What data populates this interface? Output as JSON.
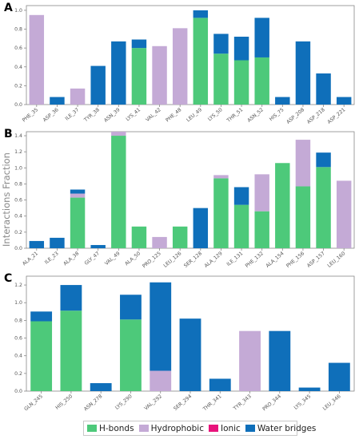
{
  "ylabel": "Interactions Fraction",
  "legend": {
    "hbonds": "H-bonds",
    "hydrophobic": "Hydrophobic",
    "ionic": "Ionic",
    "water": "Water bridges"
  },
  "colors": {
    "hbonds": "#4dc97a",
    "hydrophobic": "#c4aad6",
    "ionic": "#e8137b",
    "water": "#0f6fba"
  },
  "chart_data": [
    {
      "panel": "A",
      "type": "bar",
      "stacked": true,
      "ylim": [
        0,
        1.05
      ],
      "yticks": [
        0.0,
        0.2,
        0.4,
        0.6,
        0.8,
        1.0
      ],
      "categories": [
        "PHE_35",
        "ASP_36",
        "ILE_37",
        "TYR_38",
        "ASN_39",
        "LYS_41",
        "VAL_42",
        "PHE_48",
        "LEU_49",
        "LYS_50",
        "THR_51",
        "ASN_52",
        "HIS_75",
        "ASP_208",
        "ASP_218",
        "ASP_221"
      ],
      "series": [
        {
          "name": "H-bonds",
          "values": [
            0,
            0,
            0,
            0,
            0,
            0.6,
            0,
            0,
            0.92,
            0.54,
            0.47,
            0.5,
            0,
            0,
            0,
            0
          ]
        },
        {
          "name": "Hydrophobic",
          "values": [
            0.95,
            0,
            0.17,
            0,
            0,
            0,
            0.62,
            0.81,
            0,
            0,
            0,
            0,
            0,
            0,
            0,
            0
          ]
        },
        {
          "name": "Ionic",
          "values": [
            0,
            0,
            0,
            0,
            0,
            0,
            0,
            0,
            0,
            0,
            0,
            0,
            0,
            0,
            0,
            0
          ]
        },
        {
          "name": "Water bridges",
          "values": [
            0,
            0.08,
            0,
            0.41,
            0.67,
            0.09,
            0,
            0,
            0.08,
            0.21,
            0.25,
            0.42,
            0.08,
            0.67,
            0.33,
            0.08
          ]
        }
      ]
    },
    {
      "panel": "B",
      "type": "bar",
      "stacked": true,
      "ylim": [
        0,
        1.45
      ],
      "yticks": [
        0.0,
        0.2,
        0.4,
        0.6,
        0.8,
        1.0,
        1.2,
        1.4
      ],
      "categories": [
        "ALA_21",
        "ILE_23",
        "ALA_38",
        "GLY_47",
        "VAL_49",
        "ALA_50",
        "PRO_125",
        "LEU_126",
        "SER_128",
        "ALA_129",
        "ILE_131",
        "PHE_132",
        "ALA_154",
        "PHE_156",
        "ASP_157",
        "LEU_160"
      ],
      "series": [
        {
          "name": "H-bonds",
          "values": [
            0,
            0,
            0.63,
            0,
            1.4,
            0.27,
            0,
            0.27,
            0,
            0.87,
            0.54,
            0.46,
            1.06,
            0.77,
            1.01,
            0
          ]
        },
        {
          "name": "Hydrophobic",
          "values": [
            0,
            0,
            0.05,
            0,
            0.05,
            0,
            0.14,
            0,
            0,
            0.04,
            0,
            0.46,
            0,
            0.58,
            0,
            0.84
          ]
        },
        {
          "name": "Ionic",
          "values": [
            0,
            0,
            0,
            0,
            0,
            0,
            0,
            0,
            0,
            0,
            0,
            0,
            0,
            0,
            0,
            0
          ]
        },
        {
          "name": "Water bridges",
          "values": [
            0.09,
            0.13,
            0.05,
            0.04,
            0,
            0,
            0,
            0,
            0.5,
            0,
            0.22,
            0,
            0,
            0,
            0.18,
            0
          ]
        }
      ]
    },
    {
      "panel": "C",
      "type": "bar",
      "stacked": true,
      "ylim": [
        0,
        1.3
      ],
      "yticks": [
        0.0,
        0.2,
        0.4,
        0.6,
        0.8,
        1.0,
        1.2
      ],
      "categories": [
        "GLN_245",
        "HIS_250",
        "ASN_278",
        "LYS_290",
        "VAL_292",
        "SER_294",
        "THR_341",
        "TYR_343",
        "PRO_344",
        "LYS_345",
        "LEU_346"
      ],
      "series": [
        {
          "name": "H-bonds",
          "values": [
            0.79,
            0.91,
            0,
            0.81,
            0,
            0,
            0,
            0,
            0,
            0,
            0
          ]
        },
        {
          "name": "Hydrophobic",
          "values": [
            0,
            0,
            0,
            0,
            0.23,
            0,
            0,
            0.68,
            0,
            0,
            0
          ]
        },
        {
          "name": "Ionic",
          "values": [
            0,
            0,
            0,
            0,
            0,
            0,
            0,
            0,
            0,
            0,
            0
          ]
        },
        {
          "name": "Water bridges",
          "values": [
            0.11,
            0.29,
            0.09,
            0.28,
            1.0,
            0.82,
            0.14,
            0,
            0.68,
            0.04,
            0.32
          ]
        }
      ]
    }
  ]
}
